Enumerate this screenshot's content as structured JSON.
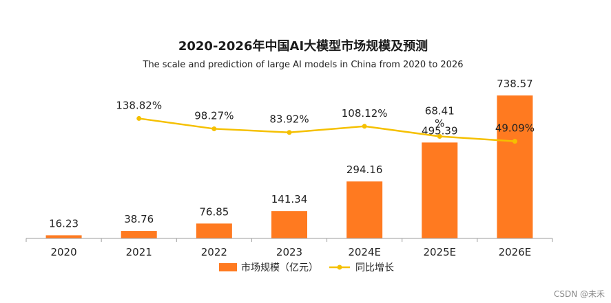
{
  "chart_data": {
    "type": "bar",
    "title": "2020-2026年中国AI大模型市场规模及预测",
    "subtitle": "The scale and prediction of large AI models in China from 2020 to 2026",
    "categories": [
      "2020",
      "2021",
      "2022",
      "2023",
      "2024E",
      "2025E",
      "2026E"
    ],
    "series": [
      {
        "name": "市场规模（亿元）",
        "kind": "bar",
        "color": "#ff7a20",
        "values": [
          16.23,
          38.76,
          76.85,
          141.34,
          294.16,
          495.39,
          738.57
        ],
        "labels": [
          "16.23",
          "38.76",
          "76.85",
          "141.34",
          "294.16",
          "495.39",
          "738.57"
        ]
      },
      {
        "name": "同比增长",
        "kind": "line",
        "color": "#f5c000",
        "values": [
          null,
          138.82,
          98.27,
          83.92,
          108.12,
          68.41,
          49.09
        ],
        "labels": [
          "",
          "138.82%",
          "98.27%",
          "83.92%",
          "108.12%",
          "68.41\n%",
          "49.09%"
        ]
      }
    ],
    "xlabel": "",
    "ylabel": "",
    "bar_ylim": [
      0,
      770
    ],
    "line_ylim": [
      0,
      600
    ],
    "grid": false,
    "legend": "bottom-center"
  },
  "watermark": "CSDN @未禾",
  "colors": {
    "axis": "#9e9e9e"
  }
}
